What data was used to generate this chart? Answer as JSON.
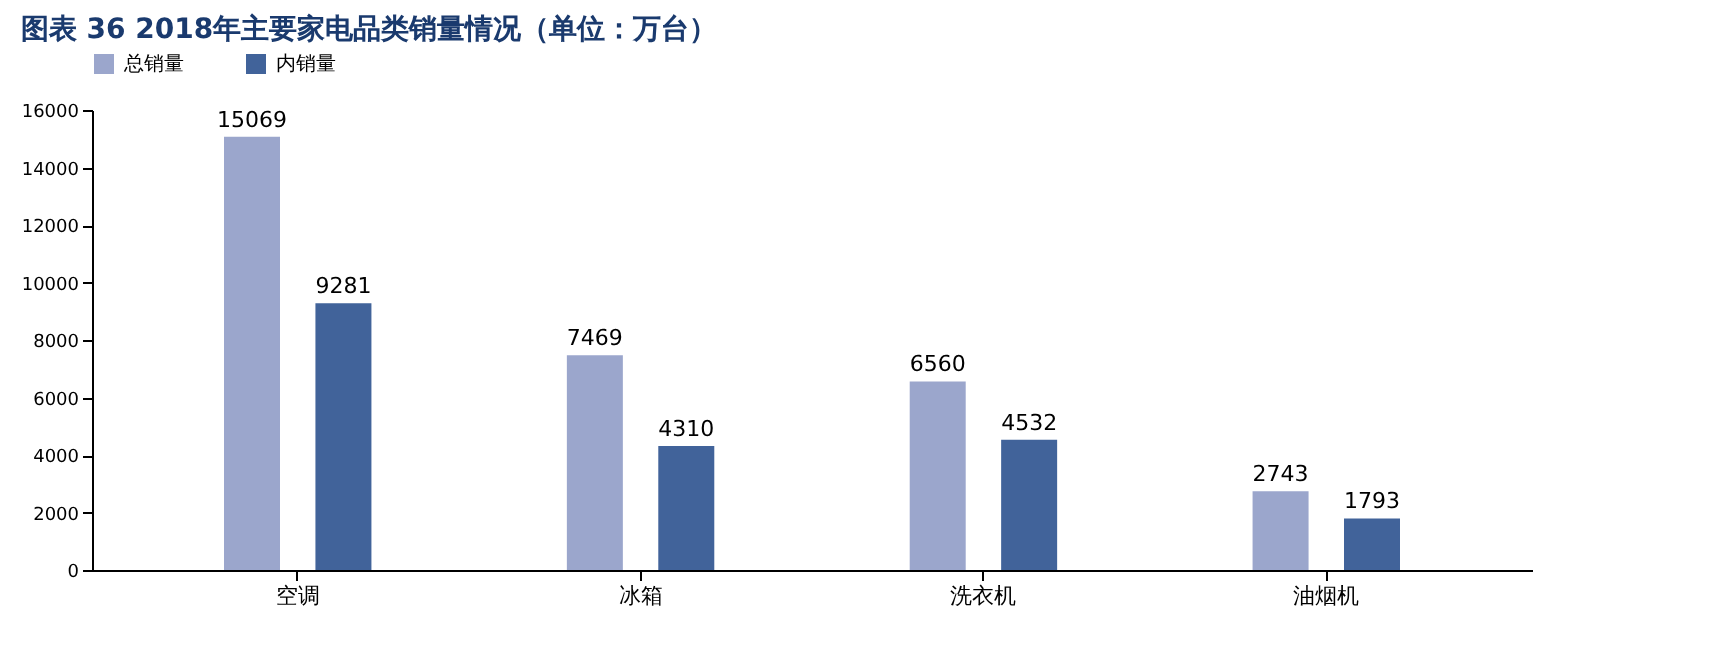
{
  "chart_data": {
    "type": "bar",
    "title": "图表 36   2018年主要家电品类销量情况（单位：万台）",
    "categories": [
      "空调",
      "冰箱",
      "洗衣机",
      "油烟机"
    ],
    "series": [
      {
        "name": "总销量",
        "color": "#9ba6cc",
        "values": [
          15069,
          7469,
          6560,
          2743
        ]
      },
      {
        "name": "内销量",
        "color": "#41639a",
        "values": [
          9281,
          4310,
          4532,
          1793
        ]
      }
    ],
    "ylim": [
      0,
      16000
    ],
    "yticks": [
      0,
      2000,
      4000,
      6000,
      8000,
      10000,
      12000,
      14000,
      16000
    ],
    "data_labels": true,
    "legend": "top",
    "grid": false
  }
}
